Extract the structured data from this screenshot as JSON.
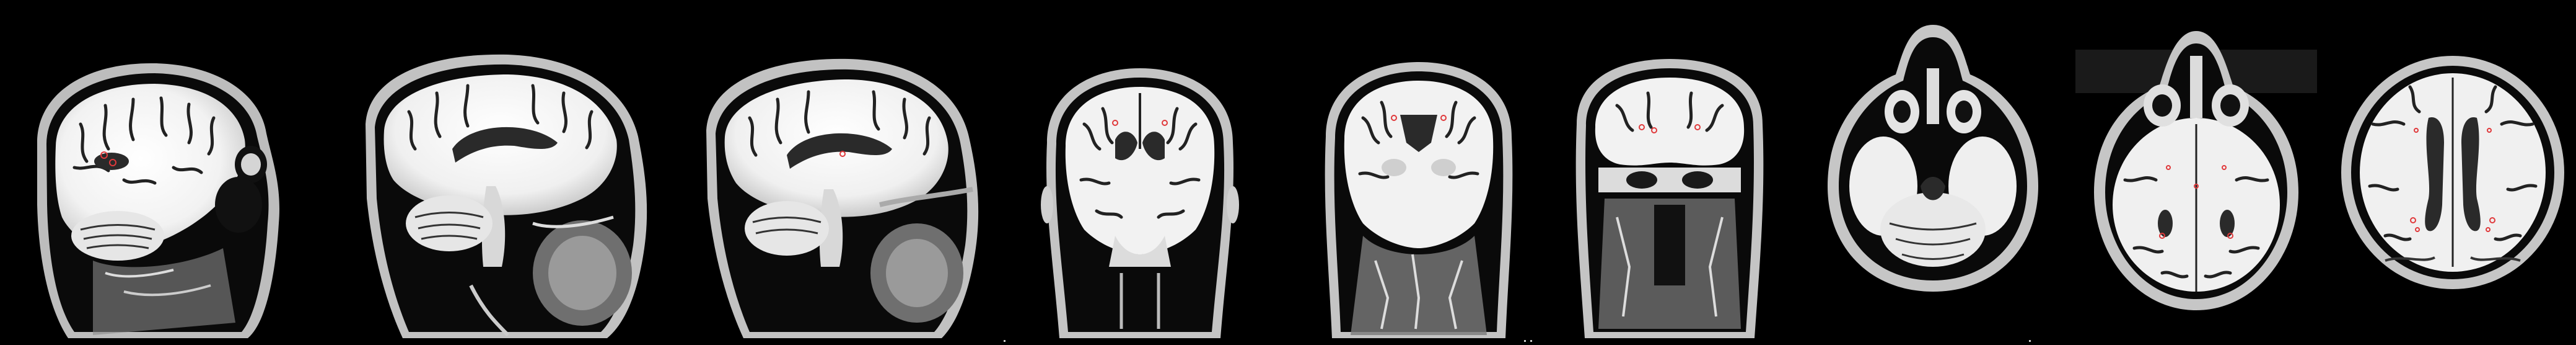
{
  "figure": {
    "description_free": true,
    "panel_count": 9,
    "views": [
      {
        "name": "sagittal-1",
        "plane": "sagittal"
      },
      {
        "name": "sagittal-2",
        "plane": "sagittal"
      },
      {
        "name": "sagittal-3",
        "plane": "sagittal"
      },
      {
        "name": "coronal-1",
        "plane": "coronal"
      },
      {
        "name": "coronal-2",
        "plane": "coronal"
      },
      {
        "name": "coronal-3",
        "plane": "coronal"
      },
      {
        "name": "axial-1",
        "plane": "axial"
      },
      {
        "name": "axial-2",
        "plane": "axial"
      },
      {
        "name": "axial-3",
        "plane": "axial"
      }
    ]
  },
  "colors": {
    "background": "#000000",
    "skull": "#d8d8d8",
    "brain": "#f4f4f4",
    "gyri": "#1a1a1a",
    "ventricle": "#2a2a2a",
    "marker": "#e0393b"
  }
}
